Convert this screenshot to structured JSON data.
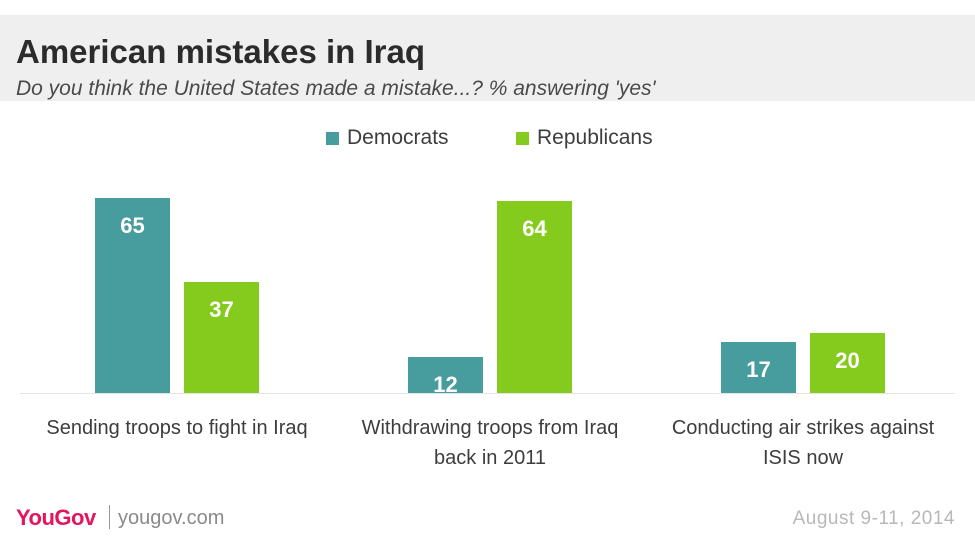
{
  "header": {
    "title": "American mistakes in Iraq",
    "subtitle": "Do you think the United States made a mistake...? % answering 'yes'"
  },
  "chart_data": {
    "type": "bar",
    "categories": [
      [
        "Sending troops to fight in Iraq"
      ],
      [
        "Withdrawing troops from Iraq",
        "back in 2011"
      ],
      [
        "Conducting air strikes against",
        "ISIS now"
      ]
    ],
    "series": [
      {
        "name": "Democrats",
        "color": "#479c9e",
        "values": [
          65,
          12,
          17
        ]
      },
      {
        "name": "Republicans",
        "color": "#84cb1d",
        "values": [
          37,
          64,
          20
        ]
      }
    ],
    "ylim": [
      0,
      100
    ],
    "grid": false,
    "legend": "top-center",
    "data_labels": true
  },
  "footer": {
    "logo": "YouGov",
    "site": "yougov.com",
    "date": "August 9-11, 2014"
  }
}
